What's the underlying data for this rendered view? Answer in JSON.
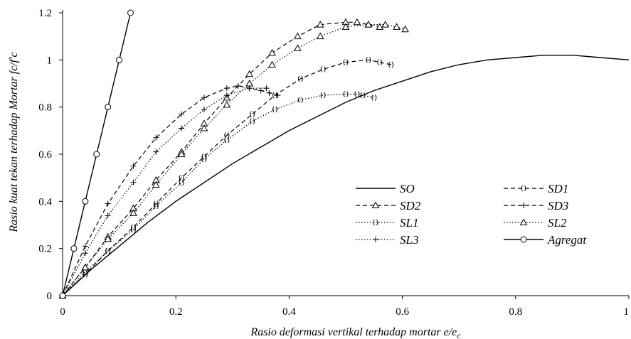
{
  "chart_data": {
    "type": "line",
    "xlabel": "Rasio deformasi vertikal terhadap mortar e/e",
    "xlabel_sub": "c",
    "ylabel": "Rasio kuat tekan terhadap Mortar fc/f'c",
    "xlim": [
      0,
      1.0
    ],
    "ylim": [
      0,
      1.2
    ],
    "x_ticks": [
      "0",
      "0.2",
      "0.4",
      "0.6",
      "0.8",
      "1"
    ],
    "y_ticks": [
      "0",
      "0.2",
      "0.4",
      "0.6",
      "0.8",
      "1",
      "1.2"
    ],
    "grid": false,
    "legend_placement": "bottom-right, two columns",
    "series": [
      {
        "name": "SO",
        "style": "solid",
        "marker": "none",
        "x": [
          0,
          0.05,
          0.1,
          0.15,
          0.2,
          0.25,
          0.3,
          0.35,
          0.4,
          0.45,
          0.5,
          0.55,
          0.6,
          0.65,
          0.7,
          0.75,
          0.8,
          0.85,
          0.9,
          0.95,
          1.0
        ],
        "y": [
          0,
          0.11,
          0.21,
          0.31,
          0.4,
          0.48,
          0.56,
          0.63,
          0.7,
          0.76,
          0.82,
          0.87,
          0.91,
          0.95,
          0.98,
          1.0,
          1.01,
          1.02,
          1.02,
          1.01,
          1.0
        ]
      },
      {
        "name": "SD1",
        "style": "dash",
        "marker": "brace",
        "x": [
          0,
          0.04,
          0.08,
          0.125,
          0.165,
          0.21,
          0.25,
          0.29,
          0.335,
          0.375,
          0.42,
          0.46,
          0.5,
          0.54,
          0.56,
          0.58
        ],
        "y": [
          0,
          0.09,
          0.19,
          0.29,
          0.39,
          0.5,
          0.59,
          0.68,
          0.77,
          0.85,
          0.92,
          0.96,
          0.99,
          1.0,
          0.99,
          0.98
        ]
      },
      {
        "name": "SD2",
        "style": "dash",
        "marker": "triangle",
        "x": [
          0,
          0.04,
          0.08,
          0.125,
          0.165,
          0.21,
          0.25,
          0.29,
          0.33,
          0.37,
          0.415,
          0.455,
          0.5,
          0.52,
          0.54,
          0.56
        ],
        "y": [
          0,
          0.12,
          0.25,
          0.37,
          0.49,
          0.61,
          0.73,
          0.84,
          0.94,
          1.03,
          1.1,
          1.15,
          1.16,
          1.16,
          1.15,
          1.14
        ]
      },
      {
        "name": "SD3",
        "style": "dash",
        "marker": "plus",
        "x": [
          0,
          0.04,
          0.08,
          0.125,
          0.165,
          0.21,
          0.25,
          0.29,
          0.31,
          0.33,
          0.35,
          0.365,
          0.38
        ],
        "y": [
          0,
          0.21,
          0.39,
          0.55,
          0.67,
          0.77,
          0.84,
          0.88,
          0.89,
          0.88,
          0.87,
          0.86,
          0.85
        ]
      },
      {
        "name": "SL1",
        "style": "dot",
        "marker": "brace",
        "x": [
          0,
          0.04,
          0.08,
          0.125,
          0.165,
          0.21,
          0.25,
          0.29,
          0.335,
          0.375,
          0.42,
          0.46,
          0.5,
          0.52,
          0.53,
          0.55
        ],
        "y": [
          0,
          0.1,
          0.19,
          0.28,
          0.38,
          0.48,
          0.58,
          0.66,
          0.74,
          0.79,
          0.83,
          0.85,
          0.855,
          0.855,
          0.85,
          0.84
        ]
      },
      {
        "name": "SL2",
        "style": "dot",
        "marker": "triangle",
        "x": [
          0,
          0.04,
          0.08,
          0.125,
          0.165,
          0.21,
          0.25,
          0.29,
          0.33,
          0.37,
          0.415,
          0.455,
          0.5,
          0.54,
          0.57,
          0.59,
          0.605
        ],
        "y": [
          0,
          0.12,
          0.24,
          0.35,
          0.47,
          0.6,
          0.71,
          0.81,
          0.9,
          0.98,
          1.05,
          1.1,
          1.14,
          1.15,
          1.15,
          1.14,
          1.13
        ]
      },
      {
        "name": "SL3",
        "style": "dot",
        "marker": "plus",
        "x": [
          0,
          0.04,
          0.08,
          0.125,
          0.165,
          0.21,
          0.25,
          0.29,
          0.33,
          0.36
        ],
        "y": [
          0,
          0.18,
          0.34,
          0.48,
          0.61,
          0.71,
          0.79,
          0.85,
          0.88,
          0.88
        ]
      },
      {
        "name": "Agregat",
        "style": "solid",
        "marker": "circle",
        "x": [
          0,
          0.02,
          0.04,
          0.06,
          0.08,
          0.1,
          0.12
        ],
        "y": [
          0,
          0.2,
          0.4,
          0.6,
          0.8,
          1.0,
          1.2
        ]
      }
    ]
  }
}
